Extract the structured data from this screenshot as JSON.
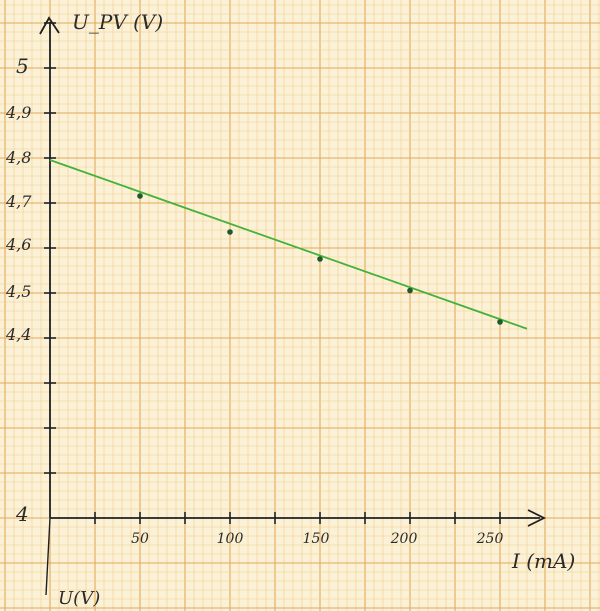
{
  "colors": {
    "paper": "#fbf1d6",
    "minor_grid": "#f1cf8c",
    "major_grid": "#e3a95a",
    "ink": "#1f1f1f",
    "fit_line": "#44b13a",
    "point": "#1e5a2a"
  },
  "chart_data": {
    "type": "scatter",
    "grid": true,
    "xlabel": "I (mA)",
    "ylabel": "U_PV (V)",
    "bottom_label": "U(V)",
    "xlim": [
      0,
      260
    ],
    "ylim": [
      4.0,
      5.0
    ],
    "x_ticks": [
      "50",
      "100",
      "150",
      "200",
      "250"
    ],
    "y_ticks": [
      "4",
      "4,4",
      "4,5",
      "4,6",
      "4,7",
      "4,8",
      "4,9",
      "5"
    ],
    "series": [
      {
        "x": [
          50,
          100,
          150,
          200,
          250
        ],
        "y": [
          4.72,
          4.64,
          4.58,
          4.51,
          4.44
        ]
      }
    ],
    "fit_line": {
      "x": [
        0,
        265
      ],
      "y": [
        4.8,
        4.425
      ]
    }
  }
}
